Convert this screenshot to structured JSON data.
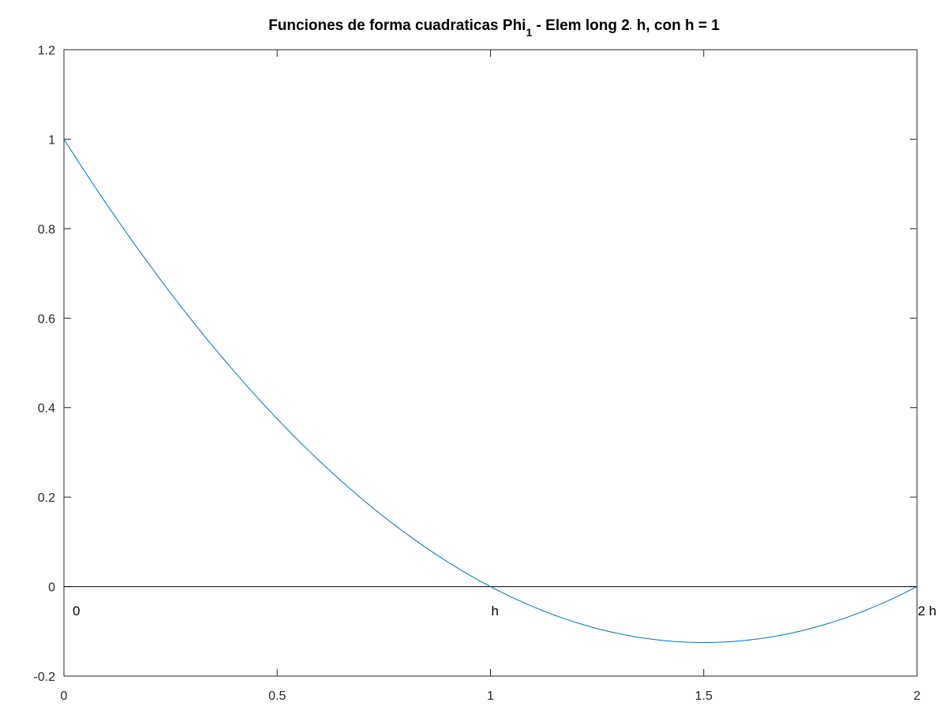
{
  "chart_data": {
    "type": "line",
    "title": {
      "main": "Funciones de forma cuadraticas Phi",
      "sub": "1",
      "rest": " - Elem long 2",
      "dot": "·",
      "tail": " h, con h = 1"
    },
    "xlabel": "",
    "ylabel": "",
    "xlim": [
      0,
      2
    ],
    "ylim": [
      -0.2,
      1.2
    ],
    "xticks": [
      "0",
      "0.5",
      "1",
      "1.5",
      "2"
    ],
    "yticks": [
      "-0.2",
      "0",
      "0.2",
      "0.4",
      "0.6",
      "0.8",
      "1",
      "1.2"
    ],
    "grid": false,
    "series": [
      {
        "color": "#0072bd",
        "x": [
          0,
          0.1,
          0.2,
          0.3,
          0.4,
          0.5,
          0.6,
          0.7,
          0.8,
          0.9,
          1.0,
          1.1,
          1.2,
          1.3,
          1.4,
          1.5,
          1.6,
          1.7,
          1.8,
          1.9,
          2.0
        ],
        "y": [
          1.0,
          0.855,
          0.72,
          0.595,
          0.48,
          0.375,
          0.28,
          0.195,
          0.12,
          0.055,
          0.0,
          -0.045,
          -0.08,
          -0.105,
          -0.12,
          -0.125,
          -0.12,
          -0.105,
          -0.08,
          -0.045,
          0.0
        ]
      }
    ],
    "reference_line": {
      "y": 0,
      "color": "#000000"
    },
    "annotations": [
      {
        "text": "0",
        "x": 0.0,
        "y": -0.05
      },
      {
        "text": "h",
        "x": 1.0,
        "y": -0.05
      },
      {
        "text": "2 h",
        "x": 2.0,
        "y": -0.05
      }
    ]
  }
}
